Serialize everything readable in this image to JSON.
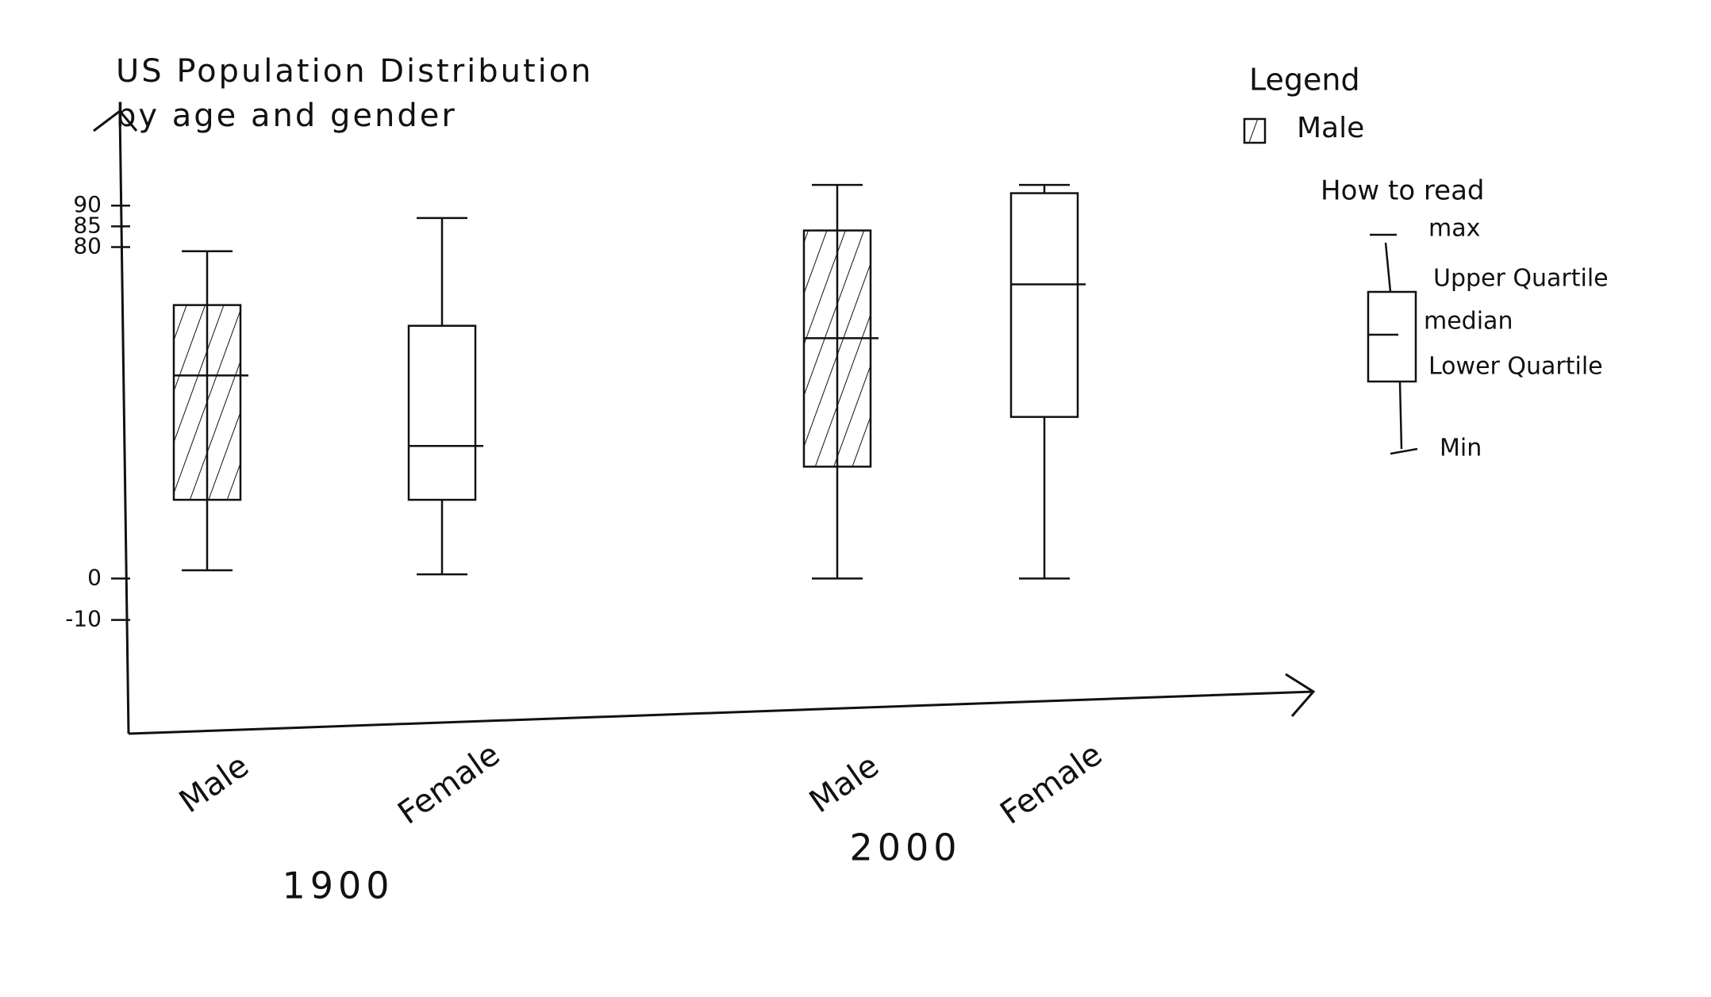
{
  "chart_data": {
    "type": "box",
    "title": "US Population Distribution by age and gender",
    "categories": [
      "Male",
      "Female",
      "Male",
      "Female"
    ],
    "groups": [
      "1900",
      "2000"
    ],
    "boxes": [
      {
        "min": 2,
        "q1": 19,
        "median": 49,
        "q3": 66,
        "max": 79
      },
      {
        "min": 1,
        "q1": 19,
        "median": 32,
        "q3": 61,
        "max": 87
      },
      {
        "min": 0,
        "q1": 27,
        "median": 58,
        "q3": 84,
        "max": 95
      },
      {
        "min": 0,
        "q1": 39,
        "median": 71,
        "q3": 93,
        "max": 95
      }
    ],
    "hatched": [
      true,
      false,
      true,
      false
    ],
    "color": "#111111",
    "ylim": [
      -25,
      100
    ],
    "yticks": [
      -10,
      0,
      80,
      85,
      90
    ],
    "legend": {
      "title": "Legend",
      "entries": [
        "Male"
      ]
    },
    "how_to_read": {
      "title": "How to read",
      "labels": [
        "max",
        "Upper Quartile",
        "median",
        "Lower Quartile",
        "Min"
      ]
    }
  }
}
